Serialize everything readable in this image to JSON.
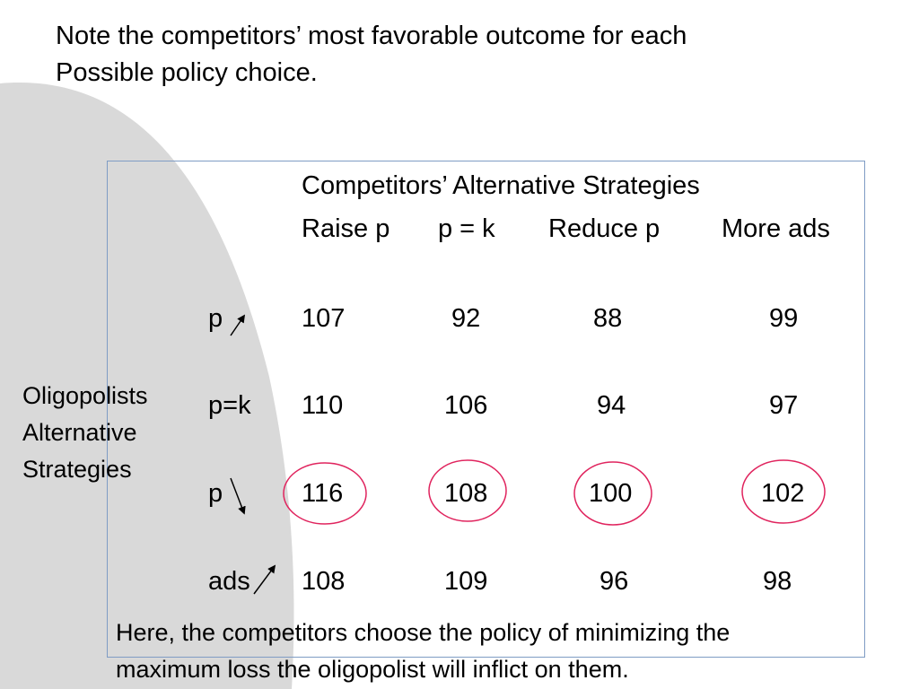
{
  "slide": {
    "title_lines": [
      "Note the competitors’ most favorable outcome for each",
      "Possible policy choice."
    ],
    "column_group_heading": "Competitors’ Alternative Strategies",
    "column_headers": [
      "Raise p",
      "p = k",
      "Reduce p",
      "More ads"
    ],
    "row_group_label_lines": [
      "Oligopolists",
      "Alternative",
      "Strategies"
    ],
    "row_labels": [
      "p",
      "p=k",
      "p",
      "ads"
    ],
    "rows": [
      [
        "107",
        "92",
        "88",
        "99"
      ],
      [
        "110",
        "106",
        "94",
        "97"
      ],
      [
        "116",
        "108",
        "100",
        "102"
      ],
      [
        "108",
        "109",
        "96",
        "98"
      ]
    ],
    "footer_lines": [
      "Here, the competitors choose the policy of minimizing the",
      "maximum loss the oligopolist will inflict on them."
    ]
  },
  "colors": {
    "background_shape": "#d9d9d9",
    "table_border": "#7f9cc4",
    "circle_highlight": "#e0245e",
    "text": "#000000"
  },
  "highlight": {
    "circled_row_index": 2
  }
}
